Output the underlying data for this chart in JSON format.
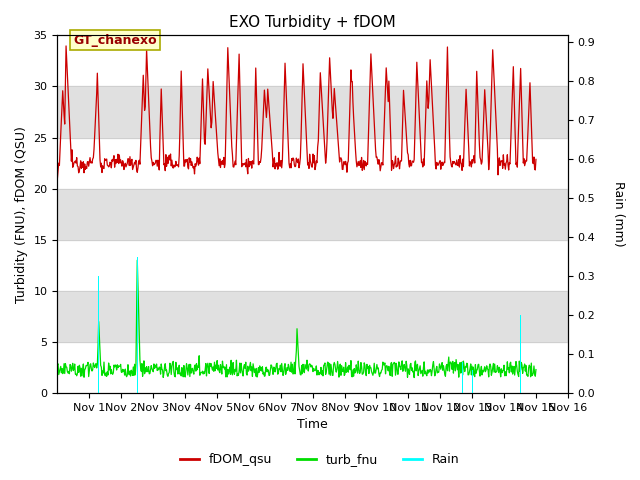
{
  "title": "EXO Turbidity + fDOM",
  "ylabel_left": "Turbidity (FNU), fDOM (QSU)",
  "ylabel_right": "Rain (mm)",
  "xlabel": "Time",
  "ylim_left": [
    0,
    35
  ],
  "ylim_right": [
    0,
    0.9167
  ],
  "yticks_left": [
    0,
    5,
    10,
    15,
    20,
    25,
    30,
    35
  ],
  "yticks_right": [
    0.0,
    0.1,
    0.2,
    0.3,
    0.4,
    0.5,
    0.6,
    0.7,
    0.8,
    0.9
  ],
  "x_ticks": [
    1,
    2,
    3,
    4,
    5,
    6,
    7,
    8,
    9,
    10,
    11,
    12,
    13,
    14,
    15,
    16
  ],
  "x_tick_labels": [
    "Nov 1",
    "Nov 2",
    "Nov 3",
    "Nov 4",
    "Nov 5",
    "Nov 6",
    "Nov 7",
    "Nov 8",
    "Nov 9",
    "Nov 10",
    "Nov 11",
    "Nov 12",
    "Nov 13",
    "Nov 14",
    "Nov 15",
    "Nov 16"
  ],
  "annotation_text": "GT_chanexo",
  "fdom_color": "#cc0000",
  "turb_color": "#00dd00",
  "rain_color": "#00ffff",
  "legend_labels": [
    "fDOM_qsu",
    "turb_fnu",
    "Rain"
  ],
  "bg_color": "#ffffff",
  "band_color": "#e0e0e0",
  "band_ranges": [
    [
      5,
      10
    ],
    [
      15,
      20
    ],
    [
      25,
      30
    ]
  ],
  "n_days": 15
}
